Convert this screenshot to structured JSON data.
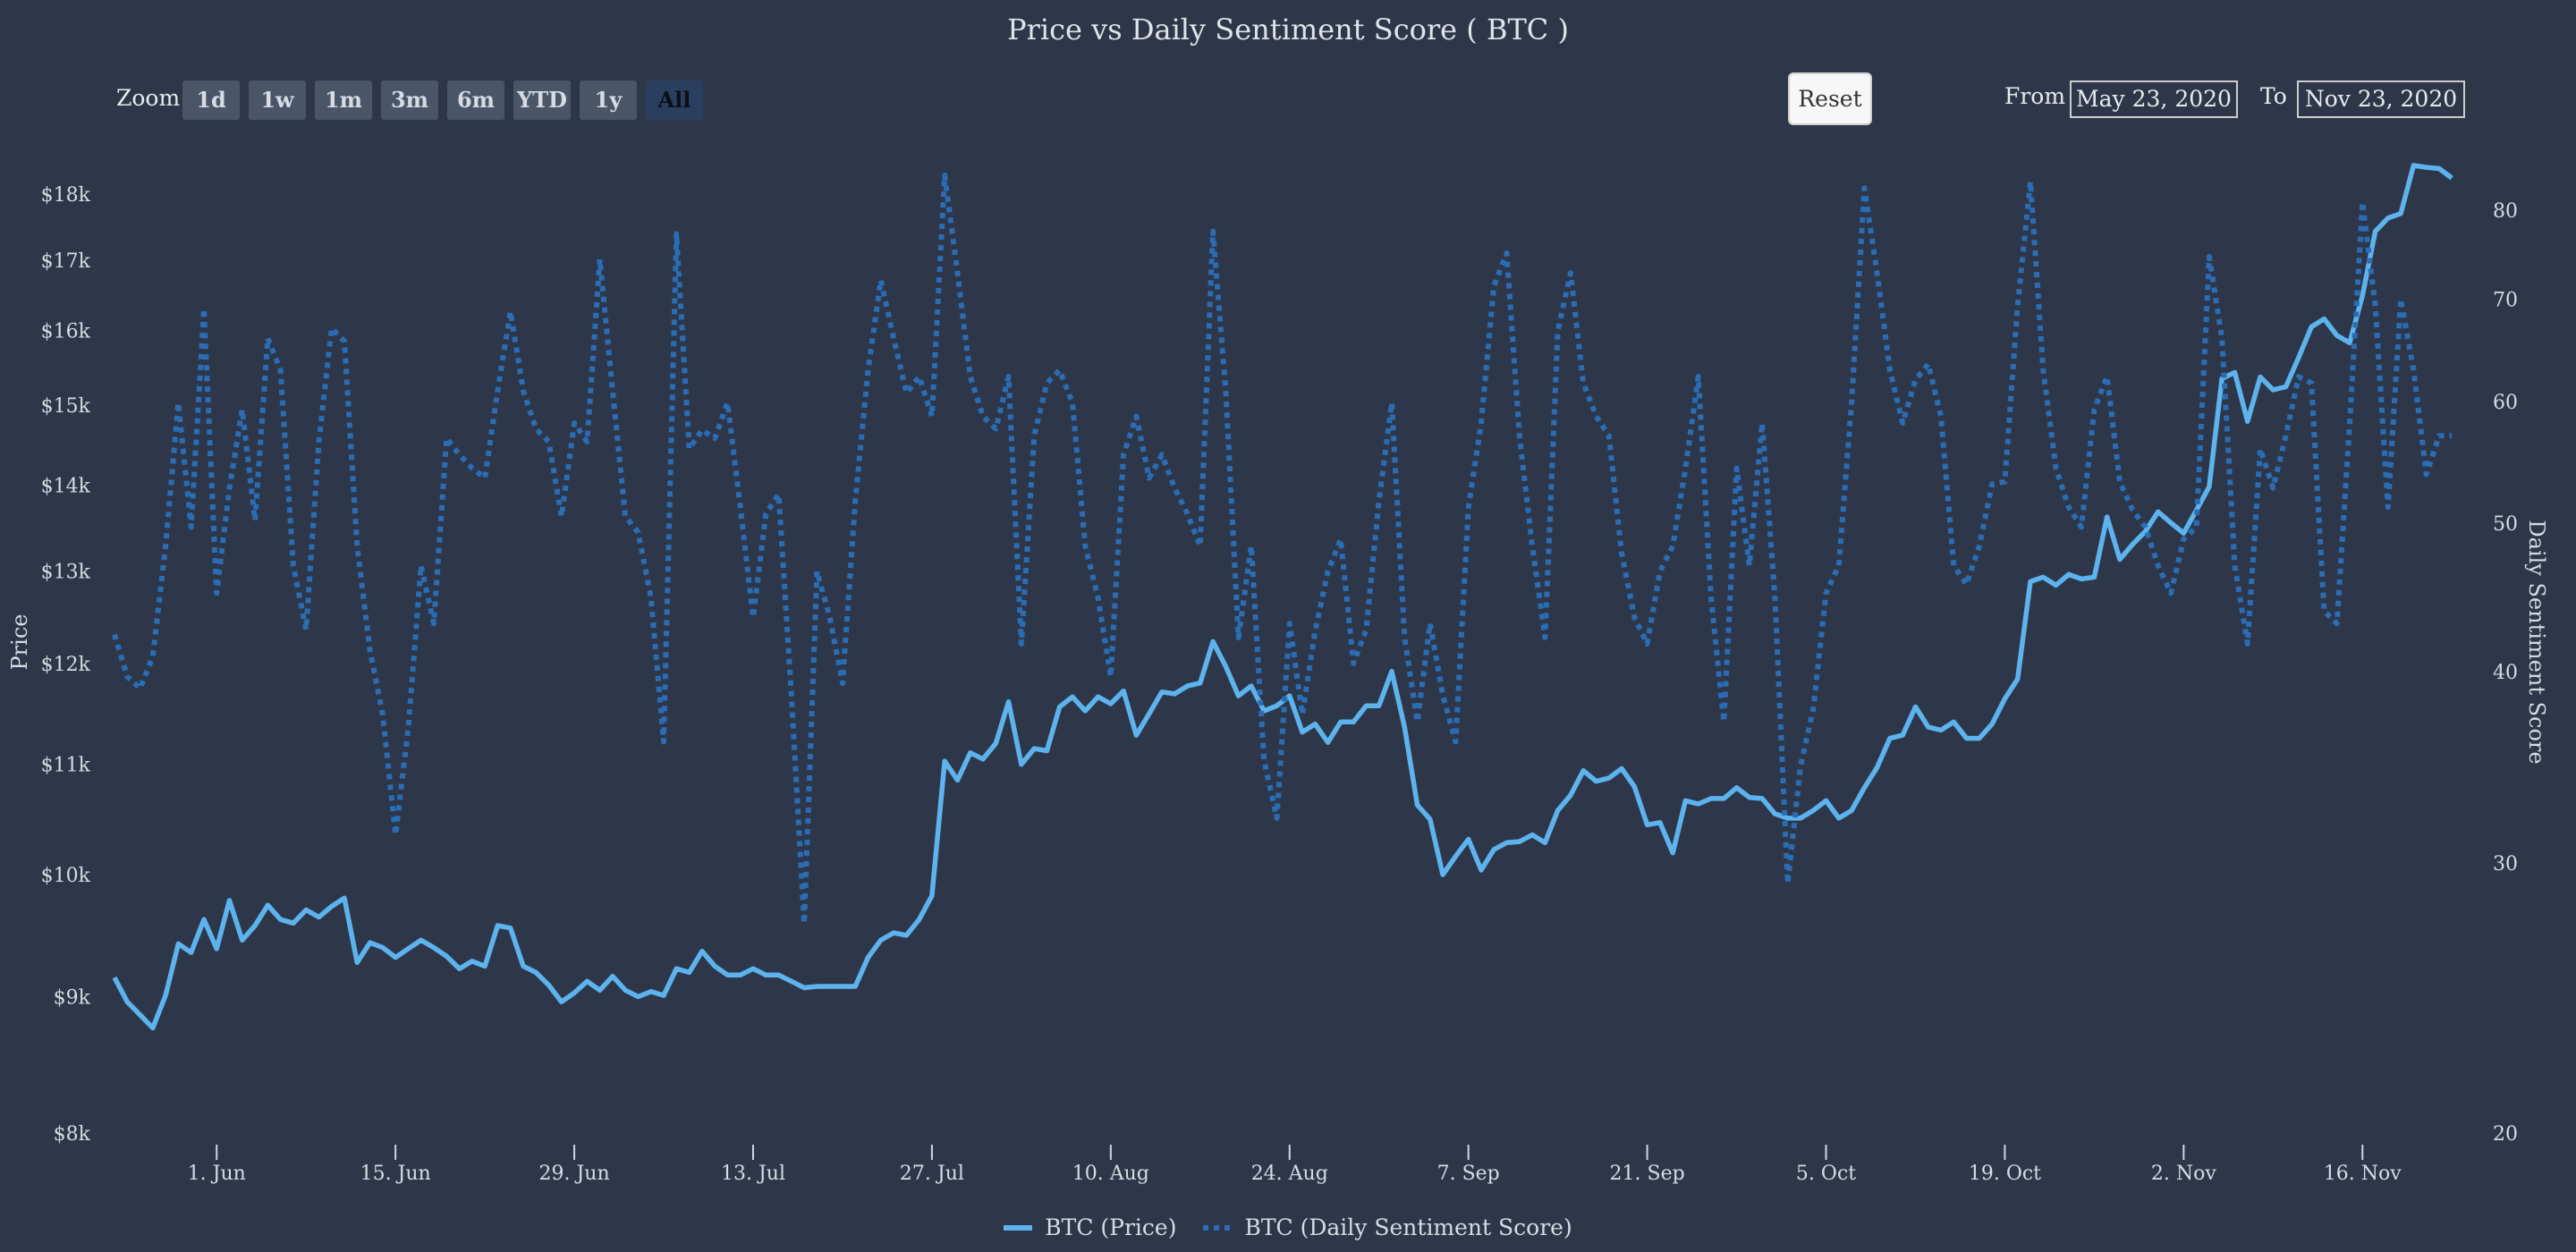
{
  "title": "Price vs Daily Sentiment Score ( BTC )",
  "range_selector": {
    "zoom_label": "Zoom",
    "buttons": [
      "1d",
      "1w",
      "1m",
      "3m",
      "6m",
      "YTD",
      "1y",
      "All"
    ],
    "active": "All",
    "reset_label": "Reset",
    "from_label": "From",
    "from_value": "May 23, 2020",
    "to_label": "To",
    "to_value": "Nov 23, 2020"
  },
  "colors": {
    "background": "#2e3749",
    "price": "#5db3ee",
    "sentiment": "#2a6db5",
    "text": "#d6dbe5"
  },
  "chart_data": {
    "type": "line",
    "title": "Price vs Daily Sentiment Score ( BTC )",
    "x_range": [
      "2020-05-24",
      "2020-11-23"
    ],
    "x_interval": "1 day",
    "x_ticks": [
      {
        "date": "2020-06-01",
        "label": "1. Jun"
      },
      {
        "date": "2020-06-15",
        "label": "15. Jun"
      },
      {
        "date": "2020-06-29",
        "label": "29. Jun"
      },
      {
        "date": "2020-07-13",
        "label": "13. Jul"
      },
      {
        "date": "2020-07-27",
        "label": "27. Jul"
      },
      {
        "date": "2020-08-10",
        "label": "10. Aug"
      },
      {
        "date": "2020-08-24",
        "label": "24. Aug"
      },
      {
        "date": "2020-09-07",
        "label": "7. Sep"
      },
      {
        "date": "2020-09-21",
        "label": "21. Sep"
      },
      {
        "date": "2020-10-05",
        "label": "5. Oct"
      },
      {
        "date": "2020-10-19",
        "label": "19. Oct"
      },
      {
        "date": "2020-11-02",
        "label": "2. Nov"
      },
      {
        "date": "2020-11-16",
        "label": "16. Nov"
      }
    ],
    "y_left": {
      "label": "Price",
      "scale": "log",
      "range": [
        8000,
        18000
      ],
      "ticks": [
        {
          "v": 8000,
          "label": "$8k"
        },
        {
          "v": 9000,
          "label": "$9k"
        },
        {
          "v": 10000,
          "label": "$10k"
        },
        {
          "v": 11000,
          "label": "$11k"
        },
        {
          "v": 12000,
          "label": "$12k"
        },
        {
          "v": 13000,
          "label": "$13k"
        },
        {
          "v": 14000,
          "label": "$14k"
        },
        {
          "v": 15000,
          "label": "$15k"
        },
        {
          "v": 16000,
          "label": "$16k"
        },
        {
          "v": 17000,
          "label": "$17k"
        },
        {
          "v": 18000,
          "label": "$18k"
        }
      ]
    },
    "y_right": {
      "label": "Daily Sentiment Score",
      "scale": "log",
      "range": [
        20,
        80
      ],
      "ticks": [
        {
          "v": 20,
          "label": "20"
        },
        {
          "v": 30,
          "label": "30"
        },
        {
          "v": 40,
          "label": "40"
        },
        {
          "v": 50,
          "label": "50"
        },
        {
          "v": 60,
          "label": "60"
        },
        {
          "v": 70,
          "label": "70"
        },
        {
          "v": 80,
          "label": "80"
        }
      ]
    },
    "grid": false,
    "legend_position": "bottom-center",
    "series": [
      {
        "name": "BTC (Price)",
        "axis": "left",
        "style": "solid",
        "values": [
          9150,
          8960,
          8860,
          8760,
          9010,
          9420,
          9350,
          9620,
          9380,
          9780,
          9450,
          9570,
          9740,
          9620,
          9590,
          9700,
          9640,
          9730,
          9800,
          9270,
          9430,
          9390,
          9310,
          9380,
          9450,
          9390,
          9320,
          9220,
          9280,
          9240,
          9570,
          9550,
          9240,
          9190,
          9090,
          8960,
          9030,
          9120,
          9050,
          9160,
          9050,
          9000,
          9040,
          9010,
          9220,
          9190,
          9360,
          9240,
          9170,
          9170,
          9220,
          9170,
          9170,
          9120,
          9070,
          9080,
          9080,
          9080,
          9080,
          9310,
          9450,
          9510,
          9490,
          9620,
          9820,
          11030,
          10850,
          11110,
          11050,
          11200,
          11610,
          11000,
          11150,
          11130,
          11560,
          11660,
          11520,
          11660,
          11590,
          11720,
          11280,
          11490,
          11710,
          11690,
          11770,
          11800,
          12230,
          11970,
          11670,
          11770,
          11520,
          11570,
          11670,
          11310,
          11390,
          11210,
          11410,
          11410,
          11570,
          11570,
          11920,
          11360,
          10620,
          10490,
          10000,
          10160,
          10310,
          10040,
          10220,
          10280,
          10290,
          10350,
          10280,
          10570,
          10710,
          10940,
          10840,
          10870,
          10960,
          10790,
          10440,
          10460,
          10190,
          10660,
          10630,
          10680,
          10680,
          10780,
          10690,
          10680,
          10540,
          10500,
          10500,
          10570,
          10660,
          10500,
          10570,
          10780,
          10970,
          11250,
          11280,
          11560,
          11360,
          11330,
          11410,
          11250,
          11250,
          11390,
          11640,
          11840,
          12880,
          12930,
          12840,
          12960,
          12910,
          12930,
          13620,
          13130,
          13300,
          13450,
          13680,
          13550,
          13430,
          13700,
          13980,
          15350,
          15430,
          14790,
          15370,
          15200,
          15240,
          15630,
          16050,
          16160,
          15930,
          15830,
          16490,
          17430,
          17630,
          17700,
          18450,
          18420,
          18400,
          18250
        ]
      },
      {
        "name": "BTC (Daily Sentiment Score)",
        "axis": "right",
        "style": "dotted",
        "values": [
          42.3,
          39.7,
          39,
          40.9,
          48.3,
          59.9,
          49.7,
          69,
          45,
          52.7,
          59.3,
          50.2,
          66,
          62.9,
          46.9,
          42.6,
          56.5,
          67,
          65.7,
          48.3,
          41.3,
          37.5,
          31.3,
          36.7,
          46.9,
          43,
          56.8,
          55.4,
          54.3,
          53.5,
          61,
          68.7,
          61,
          57.6,
          56.5,
          50.5,
          58.1,
          56.5,
          74.3,
          61,
          50.5,
          49.3,
          44.7,
          36,
          77.2,
          55.9,
          57.5,
          56.8,
          59.9,
          51.2,
          43.4,
          50.7,
          52.2,
          38.6,
          27.4,
          46.5,
          43.4,
          39.3,
          51.7,
          62.9,
          72,
          66,
          60.8,
          62.3,
          58.7,
          84.3,
          72.8,
          62.3,
          58.7,
          57.6,
          62.3,
          41.7,
          57,
          61.7,
          62.9,
          59.9,
          48.3,
          44.7,
          39.7,
          55.4,
          58.7,
          53.5,
          55.4,
          52.7,
          50.7,
          48.3,
          77.5,
          61,
          42.1,
          48.3,
          35,
          32.1,
          43,
          37.5,
          42.5,
          46.5,
          48.8,
          40.5,
          42.6,
          51.7,
          59.9,
          42.1,
          37.1,
          43,
          38.6,
          36,
          51.2,
          58.1,
          71.4,
          75,
          57,
          48.3,
          42.1,
          66.7,
          72.8,
          61.7,
          58.7,
          57,
          47.8,
          43.4,
          41.7,
          46.5,
          48.3,
          54.3,
          62.3,
          44.7,
          37.1,
          54.3,
          46.9,
          58.1,
          44.7,
          29.1,
          34.7,
          37.8,
          45,
          46.9,
          59.9,
          82.7,
          72.8,
          62.9,
          58.1,
          62,
          63.5,
          58.7,
          46.9,
          45.6,
          48.3,
          53,
          53.2,
          69.3,
          83.5,
          62.9,
          54.3,
          51.2,
          49.7,
          59.3,
          62.3,
          53.2,
          51,
          49.7,
          46.9,
          45,
          48.8,
          49.7,
          74.6,
          66,
          46.9,
          41.7,
          55.9,
          52.7,
          57,
          62.3,
          61.7,
          43.8,
          43,
          58.1,
          81,
          69.3,
          51.2,
          70,
          62.9,
          53.8,
          57,
          57
        ]
      }
    ]
  }
}
